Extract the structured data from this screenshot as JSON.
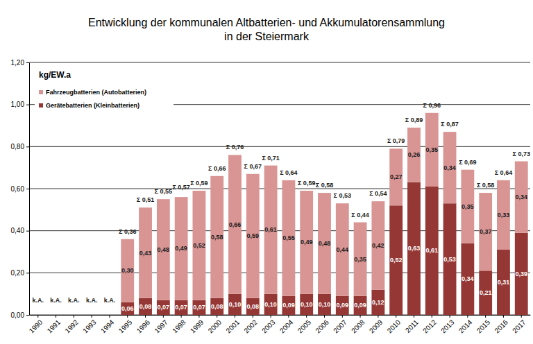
{
  "chart_data": {
    "type": "bar",
    "title": [
      "Entwicklung der kommunalen Altbatterien- und Akkumulatorensammlung",
      "in der Steiermark"
    ],
    "y_label": "kg/EW.a",
    "categories": [
      "1990",
      "1991",
      "1992",
      "1993",
      "1994",
      "1995",
      "1996",
      "1997",
      "1998",
      "1999",
      "2000",
      "2001",
      "2002",
      "2003",
      "2004",
      "2005",
      "2006",
      "2007",
      "2008",
      "2009",
      "2010",
      "2011",
      "2012",
      "2013",
      "2014",
      "2015",
      "2016",
      "2017"
    ],
    "series": [
      {
        "name": "Gerätebatterien (Kleinbatterien)",
        "color": "#953735",
        "values": [
          null,
          null,
          null,
          null,
          null,
          0.06,
          0.08,
          0.07,
          0.07,
          0.07,
          0.08,
          0.1,
          0.08,
          0.1,
          0.09,
          0.1,
          0.1,
          0.09,
          0.09,
          0.12,
          0.52,
          0.63,
          0.61,
          0.53,
          0.34,
          0.21,
          0.31,
          0.39
        ],
        "value_labels": [
          null,
          null,
          null,
          null,
          null,
          "0,06",
          "0,08",
          "0,07",
          "0,07",
          "0,07",
          "0,08",
          "0,10",
          "0,08",
          "0,10",
          "0,09",
          "0,10",
          "0,10",
          "0,09",
          "0,09",
          "0,12",
          "0,52",
          "0,63",
          "0,61",
          "0,53",
          "0,34",
          "0,21",
          "0,31",
          "0,39"
        ]
      },
      {
        "name": "Fahrzeugbatterien (Autobatterien)",
        "color": "#d99594",
        "values": [
          null,
          null,
          null,
          null,
          null,
          0.3,
          0.43,
          0.48,
          0.49,
          0.52,
          0.58,
          0.66,
          0.59,
          0.61,
          0.55,
          0.49,
          0.48,
          0.44,
          0.35,
          0.42,
          0.27,
          0.26,
          0.35,
          0.34,
          0.35,
          0.37,
          0.33,
          0.34
        ],
        "value_labels": [
          null,
          null,
          null,
          null,
          null,
          "0,30",
          "0,43",
          "0,48",
          "0,49",
          "0,52",
          "0,58",
          "0,66",
          "0,59",
          "0,61",
          "0,55",
          "0,49",
          "0,48",
          "0,44",
          "0,35",
          "0,42",
          "0,27",
          "0,26",
          "0,35",
          "0,34",
          "0,35",
          "0,37",
          "0,33",
          "0,34"
        ]
      }
    ],
    "totals": {
      "values": [
        null,
        null,
        null,
        null,
        null,
        0.36,
        0.51,
        0.55,
        0.57,
        0.59,
        0.66,
        0.76,
        0.67,
        0.71,
        0.64,
        0.59,
        0.58,
        0.53,
        0.44,
        0.54,
        0.79,
        0.89,
        0.96,
        0.87,
        0.69,
        0.58,
        0.64,
        0.73
      ],
      "value_labels": [
        null,
        null,
        null,
        null,
        null,
        "Σ 0,36",
        "Σ 0,51",
        "Σ 0,55",
        "Σ 0,57",
        "Σ 0,59",
        "Σ 0,66",
        "Σ 0,76",
        "Σ 0,67",
        "Σ 0,71",
        "Σ 0,64",
        "Σ 0,59",
        "Σ 0,58",
        "Σ 0,53",
        "Σ 0,44",
        "Σ 0,54",
        "Σ 0,79",
        "Σ 0,89",
        "Σ 0,96",
        "Σ 0,87",
        "Σ 0,69",
        "Σ 0,58",
        "Σ 0,64",
        "Σ 0,73"
      ]
    },
    "annotations": [
      {
        "category": "1990",
        "text": "k.A."
      },
      {
        "category": "1991",
        "text": "k.A."
      },
      {
        "category": "1992",
        "text": "k.A."
      },
      {
        "category": "1993",
        "text": "k.A."
      },
      {
        "category": "1994",
        "text": "k.A."
      }
    ],
    "ylim": [
      0,
      1.2
    ],
    "yticks": [
      {
        "value": 0,
        "label": "0,00"
      },
      {
        "value": 0.2,
        "label": "0,20"
      },
      {
        "value": 0.4,
        "label": "0,40"
      },
      {
        "value": 0.6,
        "label": "0,60"
      },
      {
        "value": 0.8,
        "label": "0,80"
      },
      {
        "value": 1.0,
        "label": "1,00"
      },
      {
        "value": 1.2,
        "label": "1,20"
      }
    ],
    "grid": true,
    "stacked": true,
    "data_labels": true,
    "legend": "upper left"
  }
}
